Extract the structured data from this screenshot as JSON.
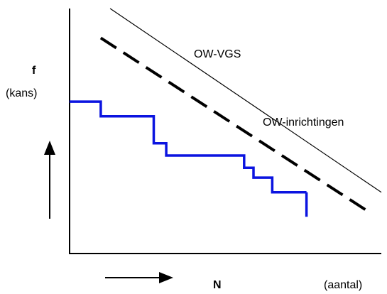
{
  "chart_data": {
    "type": "line",
    "title": "",
    "ylabel": "f",
    "ylabel_sub": "(kans)",
    "xlabel": "N",
    "xlabel_sub": "(aantal)",
    "xlim": [
      0,
      100
    ],
    "ylim": [
      0,
      100
    ],
    "grid": false,
    "legend": "none",
    "series": [
      {
        "name": "OW-VGS",
        "style": "thin-solid",
        "color": "#000000",
        "x": [
          13,
          100
        ],
        "y": [
          100,
          25
        ]
      },
      {
        "name": "OW-inrichtingen",
        "style": "thick-dashed",
        "color": "#000000",
        "x": [
          10,
          96
        ],
        "y": [
          88,
          17
        ]
      },
      {
        "name": "",
        "style": "step",
        "color": "#0b14e0",
        "x": [
          0,
          10,
          10,
          27,
          27,
          31,
          31,
          56,
          56,
          59,
          59,
          65,
          65,
          76
        ],
        "y": [
          62,
          62,
          56,
          56,
          45,
          45,
          40,
          40,
          35,
          35,
          31,
          31,
          25,
          25
        ],
        "end_x": 76,
        "end_y_low": 15
      }
    ]
  }
}
